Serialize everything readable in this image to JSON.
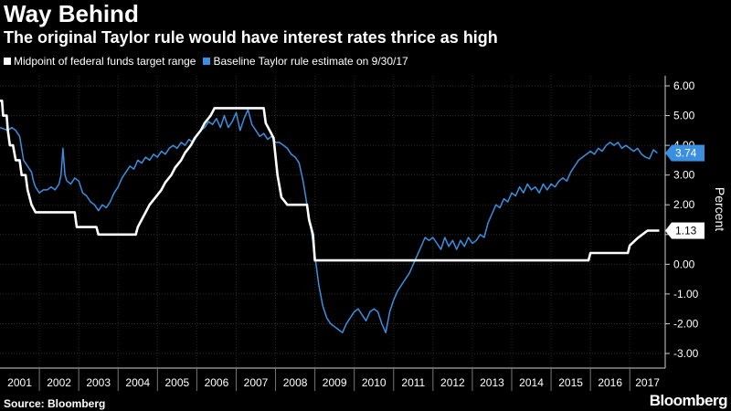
{
  "header": {
    "title": "Way Behind",
    "subtitle": "The original Taylor rule would have interest rates thrice as high"
  },
  "legend": [
    {
      "label": "Midpoint of federal funds target range",
      "color": "#ffffff"
    },
    {
      "label": "Baseline Taylor rule estimate on 9/30/17",
      "color": "#3a8fe0"
    }
  ],
  "footer": {
    "source": "Source: Bloomberg",
    "brand": "Bloomberg"
  },
  "chart_data": {
    "type": "line",
    "ylabel": "Percent",
    "ylim": [
      -3,
      6
    ],
    "xlim": [
      2001,
      2017.9
    ],
    "yticks": [
      6,
      5,
      4,
      3,
      2,
      1,
      0,
      -1,
      -2,
      -3
    ],
    "ytick_labels": [
      "6.00",
      "5.00",
      "4.00",
      "3.00",
      "2.00",
      "1.00",
      "0.00",
      "-1.00",
      "-2.00",
      "-3.00"
    ],
    "xtick_labels": [
      "2001",
      "2002",
      "2003",
      "2004",
      "2005",
      "2006",
      "2007",
      "2008",
      "2009",
      "2010",
      "2011",
      "2012",
      "2013",
      "2014",
      "2015",
      "2016",
      "2017"
    ],
    "end_labels": [
      {
        "series": "Baseline Taylor rule estimate on 9/30/17",
        "text": "3.74",
        "value": 3.74
      },
      {
        "series": "Midpoint of federal funds target range",
        "text": "1.13",
        "value": 1.13
      }
    ],
    "series": [
      {
        "name": "Midpoint of federal funds target range",
        "color": "#ffffff",
        "points": [
          [
            2001.0,
            5.5
          ],
          [
            2001.05,
            5.5
          ],
          [
            2001.08,
            5.0
          ],
          [
            2001.17,
            5.0
          ],
          [
            2001.2,
            4.5
          ],
          [
            2001.25,
            4.0
          ],
          [
            2001.33,
            4.0
          ],
          [
            2001.4,
            3.5
          ],
          [
            2001.5,
            3.5
          ],
          [
            2001.55,
            3.0
          ],
          [
            2001.65,
            3.0
          ],
          [
            2001.7,
            2.5
          ],
          [
            2001.8,
            2.0
          ],
          [
            2001.9,
            1.75
          ],
          [
            2002.9,
            1.75
          ],
          [
            2002.95,
            1.25
          ],
          [
            2003.45,
            1.25
          ],
          [
            2003.5,
            1.0
          ],
          [
            2004.45,
            1.0
          ],
          [
            2004.5,
            1.25
          ],
          [
            2004.6,
            1.5
          ],
          [
            2004.7,
            1.75
          ],
          [
            2004.8,
            2.0
          ],
          [
            2004.95,
            2.25
          ],
          [
            2005.1,
            2.5
          ],
          [
            2005.2,
            2.75
          ],
          [
            2005.35,
            3.0
          ],
          [
            2005.45,
            3.25
          ],
          [
            2005.6,
            3.5
          ],
          [
            2005.7,
            3.75
          ],
          [
            2005.85,
            4.0
          ],
          [
            2005.95,
            4.25
          ],
          [
            2006.1,
            4.5
          ],
          [
            2006.2,
            4.75
          ],
          [
            2006.35,
            5.0
          ],
          [
            2006.45,
            5.25
          ],
          [
            2007.7,
            5.25
          ],
          [
            2007.75,
            4.75
          ],
          [
            2007.85,
            4.5
          ],
          [
            2007.95,
            4.25
          ],
          [
            2008.05,
            3.0
          ],
          [
            2008.15,
            2.25
          ],
          [
            2008.3,
            2.0
          ],
          [
            2008.8,
            2.0
          ],
          [
            2008.85,
            1.5
          ],
          [
            2008.95,
            1.0
          ],
          [
            2009.0,
            0.13
          ],
          [
            2015.95,
            0.13
          ],
          [
            2016.0,
            0.38
          ],
          [
            2016.95,
            0.38
          ],
          [
            2017.0,
            0.63
          ],
          [
            2017.2,
            0.88
          ],
          [
            2017.45,
            1.13
          ],
          [
            2017.75,
            1.13
          ]
        ]
      },
      {
        "name": "Baseline Taylor rule estimate on 9/30/17",
        "color": "#3a8fe0",
        "points": [
          [
            2001.0,
            4.6
          ],
          [
            2001.1,
            4.55
          ],
          [
            2001.2,
            4.5
          ],
          [
            2001.3,
            4.6
          ],
          [
            2001.4,
            4.5
          ],
          [
            2001.5,
            4.3
          ],
          [
            2001.6,
            3.5
          ],
          [
            2001.7,
            3.3
          ],
          [
            2001.8,
            3.1
          ],
          [
            2001.85,
            2.8
          ],
          [
            2001.9,
            2.6
          ],
          [
            2002.0,
            2.4
          ],
          [
            2002.1,
            2.5
          ],
          [
            2002.2,
            2.5
          ],
          [
            2002.3,
            2.6
          ],
          [
            2002.4,
            2.5
          ],
          [
            2002.5,
            2.7
          ],
          [
            2002.55,
            3.0
          ],
          [
            2002.6,
            3.9
          ],
          [
            2002.65,
            3.0
          ],
          [
            2002.7,
            2.8
          ],
          [
            2002.8,
            2.7
          ],
          [
            2002.9,
            2.9
          ],
          [
            2003.0,
            2.8
          ],
          [
            2003.1,
            2.4
          ],
          [
            2003.2,
            2.3
          ],
          [
            2003.3,
            2.1
          ],
          [
            2003.4,
            2.0
          ],
          [
            2003.5,
            1.8
          ],
          [
            2003.6,
            2.0
          ],
          [
            2003.7,
            1.9
          ],
          [
            2003.8,
            2.1
          ],
          [
            2003.9,
            2.4
          ],
          [
            2004.0,
            2.6
          ],
          [
            2004.1,
            2.9
          ],
          [
            2004.2,
            3.1
          ],
          [
            2004.3,
            3.3
          ],
          [
            2004.4,
            3.2
          ],
          [
            2004.5,
            3.5
          ],
          [
            2004.6,
            3.4
          ],
          [
            2004.7,
            3.6
          ],
          [
            2004.8,
            3.5
          ],
          [
            2004.9,
            3.7
          ],
          [
            2005.0,
            3.6
          ],
          [
            2005.1,
            3.8
          ],
          [
            2005.2,
            3.7
          ],
          [
            2005.3,
            3.9
          ],
          [
            2005.4,
            4.0
          ],
          [
            2005.5,
            3.9
          ],
          [
            2005.6,
            4.1
          ],
          [
            2005.7,
            4.0
          ],
          [
            2005.8,
            4.2
          ],
          [
            2005.9,
            4.1
          ],
          [
            2006.0,
            4.3
          ],
          [
            2006.1,
            4.5
          ],
          [
            2006.2,
            4.6
          ],
          [
            2006.3,
            4.8
          ],
          [
            2006.4,
            4.7
          ],
          [
            2006.5,
            4.9
          ],
          [
            2006.6,
            4.6
          ],
          [
            2006.7,
            5.0
          ],
          [
            2006.8,
            4.6
          ],
          [
            2006.9,
            4.8
          ],
          [
            2007.0,
            5.1
          ],
          [
            2007.1,
            4.5
          ],
          [
            2007.2,
            4.9
          ],
          [
            2007.3,
            5.2
          ],
          [
            2007.4,
            4.7
          ],
          [
            2007.5,
            4.5
          ],
          [
            2007.6,
            4.3
          ],
          [
            2007.7,
            4.4
          ],
          [
            2007.8,
            4.2
          ],
          [
            2007.9,
            4.3
          ],
          [
            2008.0,
            4.1
          ],
          [
            2008.1,
            4.1
          ],
          [
            2008.2,
            4.0
          ],
          [
            2008.3,
            3.9
          ],
          [
            2008.4,
            3.7
          ],
          [
            2008.5,
            3.6
          ],
          [
            2008.6,
            3.4
          ],
          [
            2008.7,
            2.8
          ],
          [
            2008.8,
            2.0
          ],
          [
            2008.9,
            1.2
          ],
          [
            2009.0,
            0.3
          ],
          [
            2009.1,
            -0.7
          ],
          [
            2009.2,
            -1.4
          ],
          [
            2009.3,
            -1.8
          ],
          [
            2009.4,
            -2.0
          ],
          [
            2009.5,
            -2.1
          ],
          [
            2009.6,
            -2.2
          ],
          [
            2009.7,
            -2.3
          ],
          [
            2009.8,
            -2.0
          ],
          [
            2009.9,
            -1.8
          ],
          [
            2010.0,
            -1.6
          ],
          [
            2010.1,
            -1.5
          ],
          [
            2010.2,
            -1.7
          ],
          [
            2010.3,
            -1.9
          ],
          [
            2010.4,
            -1.6
          ],
          [
            2010.5,
            -1.5
          ],
          [
            2010.6,
            -1.6
          ],
          [
            2010.7,
            -2.0
          ],
          [
            2010.8,
            -2.3
          ],
          [
            2010.9,
            -1.6
          ],
          [
            2011.0,
            -1.2
          ],
          [
            2011.1,
            -0.9
          ],
          [
            2011.2,
            -0.7
          ],
          [
            2011.3,
            -0.5
          ],
          [
            2011.4,
            -0.3
          ],
          [
            2011.5,
            0.0
          ],
          [
            2011.6,
            0.3
          ],
          [
            2011.7,
            0.6
          ],
          [
            2011.8,
            0.9
          ],
          [
            2011.9,
            0.8
          ],
          [
            2012.0,
            0.9
          ],
          [
            2012.1,
            0.7
          ],
          [
            2012.2,
            0.5
          ],
          [
            2012.3,
            0.9
          ],
          [
            2012.4,
            0.6
          ],
          [
            2012.5,
            0.8
          ],
          [
            2012.6,
            0.5
          ],
          [
            2012.7,
            0.8
          ],
          [
            2012.8,
            0.6
          ],
          [
            2012.9,
            0.9
          ],
          [
            2013.0,
            0.7
          ],
          [
            2013.1,
            0.8
          ],
          [
            2013.2,
            1.0
          ],
          [
            2013.3,
            0.9
          ],
          [
            2013.4,
            1.4
          ],
          [
            2013.5,
            1.7
          ],
          [
            2013.6,
            2.0
          ],
          [
            2013.7,
            1.9
          ],
          [
            2013.8,
            2.2
          ],
          [
            2013.9,
            2.1
          ],
          [
            2014.0,
            2.4
          ],
          [
            2014.1,
            2.3
          ],
          [
            2014.2,
            2.6
          ],
          [
            2014.3,
            2.4
          ],
          [
            2014.4,
            2.7
          ],
          [
            2014.5,
            2.5
          ],
          [
            2014.6,
            2.6
          ],
          [
            2014.7,
            2.4
          ],
          [
            2014.8,
            2.7
          ],
          [
            2014.9,
            2.5
          ],
          [
            2015.0,
            2.7
          ],
          [
            2015.1,
            2.6
          ],
          [
            2015.2,
            2.8
          ],
          [
            2015.3,
            2.9
          ],
          [
            2015.4,
            2.8
          ],
          [
            2015.5,
            3.1
          ],
          [
            2015.6,
            3.3
          ],
          [
            2015.7,
            3.5
          ],
          [
            2015.8,
            3.6
          ],
          [
            2015.9,
            3.7
          ],
          [
            2016.0,
            3.8
          ],
          [
            2016.1,
            3.7
          ],
          [
            2016.2,
            3.9
          ],
          [
            2016.3,
            3.8
          ],
          [
            2016.4,
            4.0
          ],
          [
            2016.5,
            4.1
          ],
          [
            2016.6,
            4.0
          ],
          [
            2016.7,
            4.1
          ],
          [
            2016.8,
            3.9
          ],
          [
            2016.9,
            4.0
          ],
          [
            2017.0,
            3.9
          ],
          [
            2017.1,
            3.8
          ],
          [
            2017.2,
            3.9
          ],
          [
            2017.3,
            3.7
          ],
          [
            2017.4,
            3.6
          ],
          [
            2017.5,
            3.55
          ],
          [
            2017.6,
            3.85
          ],
          [
            2017.7,
            3.74
          ]
        ]
      }
    ]
  }
}
